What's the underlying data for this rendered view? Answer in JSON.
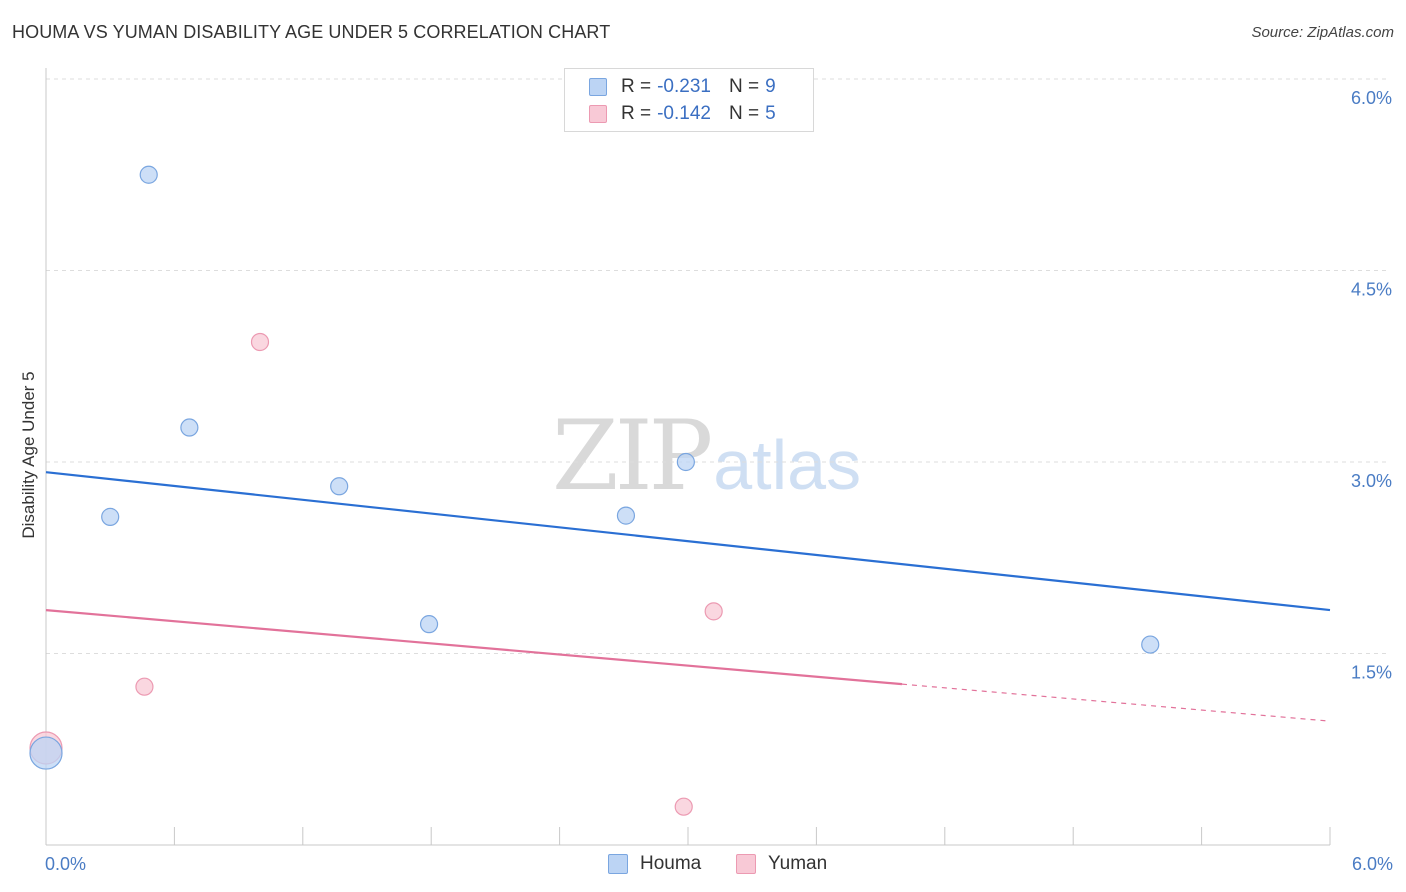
{
  "title": "HOUMA VS YUMAN DISABILITY AGE UNDER 5 CORRELATION CHART",
  "source": "Source: ZipAtlas.com",
  "watermark": {
    "zip": "ZIP",
    "atlas": "atlas"
  },
  "colors": {
    "houma_fill": "#bcd4f4",
    "houma_stroke": "#7aa6e0",
    "houma_line": "#2a6fd3",
    "yuman_fill": "#f8c9d6",
    "yuman_stroke": "#ec9ab2",
    "yuman_line": "#e2729a",
    "grid": "#dddddd",
    "tick_text": "#4a7cc4"
  },
  "legend": {
    "houma": {
      "r_label": "R = ",
      "r_value": "-0.231",
      "n_label": "N = ",
      "n_value": "9"
    },
    "yuman": {
      "r_label": "R = ",
      "r_value": "-0.142",
      "n_label": "N = ",
      "n_value": "5"
    }
  },
  "chart_data": {
    "type": "scatter",
    "title": "HOUMA VS YUMAN DISABILITY AGE UNDER 5 CORRELATION CHART",
    "xlabel": "",
    "ylabel": "Disability Age Under 5",
    "xlim": [
      0,
      6.0
    ],
    "ylim": [
      0,
      6.0
    ],
    "x_tick_labels": {
      "min": "0.0%",
      "max": "6.0%"
    },
    "y_ticks": [
      1.5,
      3.0,
      4.5,
      6.0
    ],
    "y_tick_labels": [
      "1.5%",
      "3.0%",
      "4.5%",
      "6.0%"
    ],
    "series": [
      {
        "name": "Houma",
        "points": [
          {
            "x": 0.0,
            "y": 0.72,
            "size": "large"
          },
          {
            "x": 0.3,
            "y": 2.57
          },
          {
            "x": 0.48,
            "y": 5.25
          },
          {
            "x": 0.67,
            "y": 3.27
          },
          {
            "x": 1.37,
            "y": 2.81
          },
          {
            "x": 1.79,
            "y": 1.73
          },
          {
            "x": 2.71,
            "y": 2.58
          },
          {
            "x": 2.99,
            "y": 3.0
          },
          {
            "x": 5.16,
            "y": 1.57
          }
        ],
        "trend": {
          "x0": 0.0,
          "y0": 2.92,
          "x1": 6.0,
          "y1": 1.84,
          "solid_to": 6.0
        }
      },
      {
        "name": "Yuman",
        "points": [
          {
            "x": 0.0,
            "y": 0.76,
            "size": "large"
          },
          {
            "x": 0.46,
            "y": 1.24
          },
          {
            "x": 1.0,
            "y": 3.94
          },
          {
            "x": 3.12,
            "y": 1.83
          },
          {
            "x": 2.98,
            "y": 0.3
          }
        ],
        "trend": {
          "x0": 0.0,
          "y0": 1.84,
          "x1": 6.0,
          "y1": 0.97,
          "solid_to": 4.0
        }
      }
    ],
    "grid": true,
    "legend": [
      "Houma",
      "Yuman"
    ]
  }
}
